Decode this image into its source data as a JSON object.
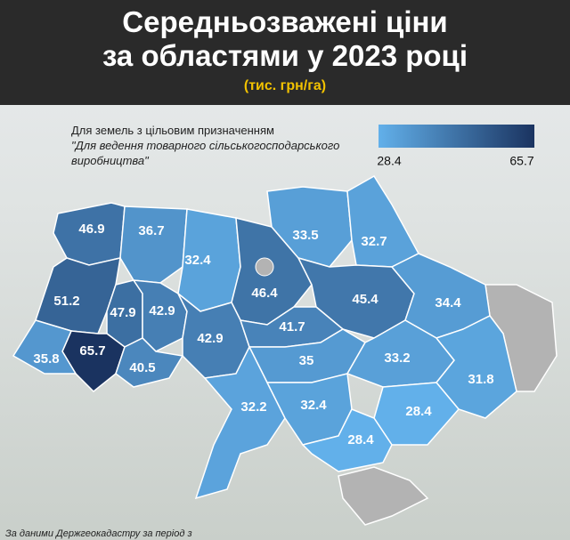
{
  "header": {
    "title": [
      "Середньозважені ціни",
      "за областями у 2023 році"
    ],
    "unit": "(тис. грн/га)"
  },
  "legend": {
    "caption": [
      "Для земель з цільовим призначенням",
      "\"Для ведення товарного сільськогосподарського",
      "виробництва\""
    ],
    "min": 28.4,
    "max": 65.7,
    "min_color": "#62b0ea",
    "max_color": "#1a3360"
  },
  "regions": [
    46.9,
    36.7,
    32.4,
    46.4,
    33.5,
    32.7,
    45.4,
    34.4,
    51.2,
    47.9,
    42.9,
    42.9,
    41.7,
    65.7,
    40.5,
    35.8,
    35.0,
    33.2,
    31.8,
    32.2,
    32.4,
    28.4,
    28.4
  ],
  "footer": {
    "source": "За даними Держгеокадастру за період з"
  }
}
